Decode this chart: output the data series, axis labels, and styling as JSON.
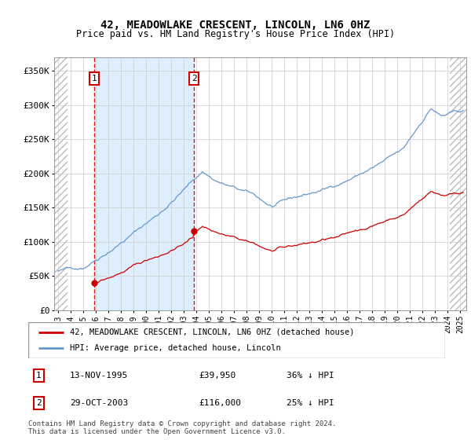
{
  "title": "42, MEADOWLAKE CRESCENT, LINCOLN, LN6 0HZ",
  "subtitle": "Price paid vs. HM Land Registry's House Price Index (HPI)",
  "ylabel_ticks": [
    "£0",
    "£50K",
    "£100K",
    "£150K",
    "£200K",
    "£250K",
    "£300K",
    "£350K"
  ],
  "ytick_values": [
    0,
    50000,
    100000,
    150000,
    200000,
    250000,
    300000,
    350000
  ],
  "ylim": [
    0,
    370000
  ],
  "xlim_start": 1992.7,
  "xlim_end": 2025.5,
  "hatch_left_end": 1993.75,
  "hatch_right_start": 2024.17,
  "transaction1_date": 1995.87,
  "transaction1_price": 39950,
  "transaction2_date": 2003.83,
  "transaction2_price": 116000,
  "transaction1_text": "13-NOV-1995",
  "transaction1_price_text": "£39,950",
  "transaction1_hpi_text": "36% ↓ HPI",
  "transaction2_text": "29-OCT-2003",
  "transaction2_price_text": "£116,000",
  "transaction2_hpi_text": "25% ↓ HPI",
  "red_line_color": "#cc0000",
  "blue_line_color": "#6699cc",
  "dashed_line_color": "#cc0000",
  "shaded_region_color": "#ddeeff",
  "grid_color": "#cccccc",
  "background_color": "#ffffff",
  "legend_label_red": "42, MEADOWLAKE CRESCENT, LINCOLN, LN6 0HZ (detached house)",
  "legend_label_blue": "HPI: Average price, detached house, Lincoln",
  "footnote": "Contains HM Land Registry data © Crown copyright and database right 2024.\nThis data is licensed under the Open Government Licence v3.0.",
  "xtick_years": [
    1993,
    1994,
    1995,
    1996,
    1997,
    1998,
    1999,
    2000,
    2001,
    2002,
    2003,
    2004,
    2005,
    2006,
    2007,
    2008,
    2009,
    2010,
    2011,
    2012,
    2013,
    2014,
    2015,
    2016,
    2017,
    2018,
    2019,
    2020,
    2021,
    2022,
    2023,
    2024,
    2025
  ]
}
